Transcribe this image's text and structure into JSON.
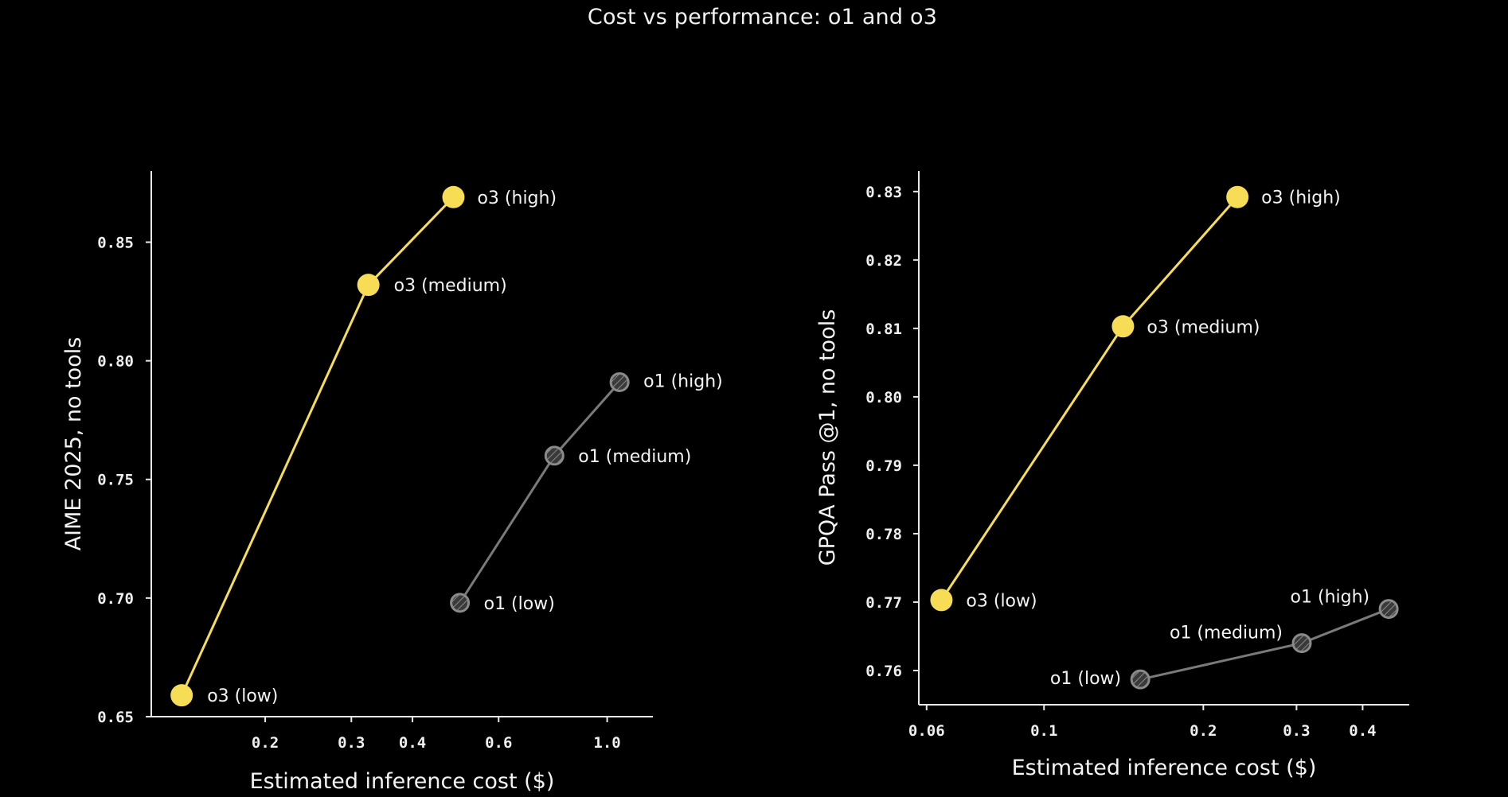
{
  "title": "Cost vs performance: o1 and o3",
  "colors": {
    "background": "#000000",
    "o3": "#f7dd55",
    "o1": "#808080",
    "text": "#f4f4f4"
  },
  "chart_data": [
    {
      "type": "scatter",
      "xlabel": "Estimated inference cost ($)",
      "ylabel": "AIME 2025, no tools",
      "xscale": "log",
      "xlim": [
        0.117,
        1.24
      ],
      "ylim": [
        0.65,
        0.88
      ],
      "xticks": [
        0.2,
        0.3,
        0.4,
        0.6,
        1.0
      ],
      "xtick_labels": [
        "0.2",
        "0.3",
        "0.4",
        "0.6",
        "1.0"
      ],
      "yticks": [
        0.65,
        0.7,
        0.75,
        0.8,
        0.85
      ],
      "ytick_labels": [
        "0.65",
        "0.70",
        "0.75",
        "0.80",
        "0.85"
      ],
      "grid": false,
      "series": [
        {
          "key": "o3",
          "style": "solid",
          "points": [
            {
              "x": 0.135,
              "y": 0.659,
              "label": "o3 (low)"
            },
            {
              "x": 0.325,
              "y": 0.832,
              "label": "o3 (medium)"
            },
            {
              "x": 0.485,
              "y": 0.869,
              "label": "o3 (high)"
            }
          ]
        },
        {
          "key": "o1",
          "style": "hatched",
          "points": [
            {
              "x": 0.5,
              "y": 0.698,
              "label": "o1 (low)"
            },
            {
              "x": 0.78,
              "y": 0.76,
              "label": "o1 (medium)"
            },
            {
              "x": 1.06,
              "y": 0.791,
              "label": "o1 (high)"
            }
          ]
        }
      ]
    },
    {
      "type": "scatter",
      "xlabel": "Estimated inference cost ($)",
      "ylabel": "GPQA Pass @1, no tools",
      "xscale": "log",
      "xlim": [
        0.058,
        0.49
      ],
      "ylim": [
        0.755,
        0.833
      ],
      "xticks": [
        0.06,
        0.1,
        0.2,
        0.3,
        0.4
      ],
      "xtick_labels": [
        "0.06",
        "0.1",
        "0.2",
        "0.3",
        "0.4"
      ],
      "yticks": [
        0.76,
        0.77,
        0.78,
        0.79,
        0.8,
        0.81,
        0.82,
        0.83
      ],
      "ytick_labels": [
        "0.76",
        "0.77",
        "0.78",
        "0.79",
        "0.80",
        "0.81",
        "0.82",
        "0.83"
      ],
      "grid": false,
      "series": [
        {
          "key": "o3",
          "style": "solid",
          "points": [
            {
              "x": 0.064,
              "y": 0.7703,
              "label": "o3 (low)"
            },
            {
              "x": 0.141,
              "y": 0.8103,
              "label": "o3 (medium)"
            },
            {
              "x": 0.232,
              "y": 0.8292,
              "label": "o3 (high)"
            }
          ]
        },
        {
          "key": "o1",
          "style": "hatched",
          "points": [
            {
              "x": 0.152,
              "y": 0.7587,
              "label": "o1 (low)"
            },
            {
              "x": 0.307,
              "y": 0.764,
              "label": "o1 (medium)"
            },
            {
              "x": 0.448,
              "y": 0.769,
              "label": "o1 (high)"
            }
          ]
        }
      ]
    }
  ]
}
